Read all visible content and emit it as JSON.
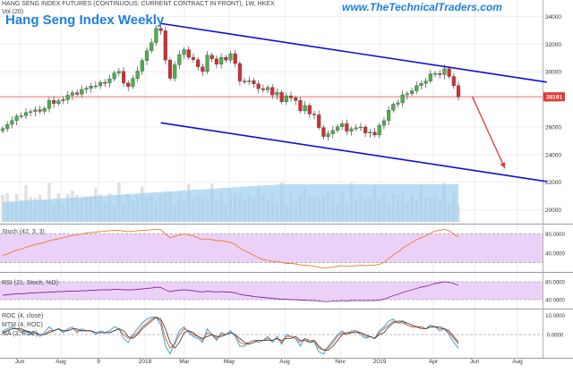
{
  "header": {
    "instrument": "HANG SENG INDEX FUTURES (CONTINUOUS: CURRENT CONTRACT IN FRONT), 1W, HKEX",
    "volume_label": "Vol (20)",
    "title": "Hang Seng Index Weekly",
    "website": "www.TheTechnicalTraders.com"
  },
  "colors": {
    "up_candle": "#4caf50",
    "down_candle": "#d32f2f",
    "channel_line": "#0d10d8",
    "projection_arrow": "#e53935",
    "price_line": "#e53935",
    "volume_fill": "#9ccff0",
    "volume_bar": "#c8c8c8",
    "stoch_band": "#e7c9f7",
    "stoch_line": "#ef7a2e",
    "rsi_line": "#8e2fae",
    "roc_line": "#2a9ae0",
    "mtm_line": "#e05a1e",
    "ma_line": "#333333"
  },
  "chart_data": [
    {
      "type": "candlestick",
      "pane": "price",
      "x_tick_labels": [
        "Jun",
        "Aug",
        "9",
        "2018",
        "Mar",
        "May",
        "Aug",
        "Nov",
        "2019",
        "Apr",
        "Jun",
        "Aug"
      ],
      "y_tick_labels": [
        "34000",
        "32000",
        "30000",
        "28000",
        "26000",
        "24000",
        "22000",
        "20000"
      ],
      "ylim": [
        19000,
        35200
      ],
      "last_price_label": "28191",
      "last_price": 28191,
      "weekly_close": [
        25880,
        26190,
        26460,
        26780,
        26820,
        27050,
        27110,
        27250,
        27140,
        27340,
        27920,
        27700,
        27900,
        27980,
        28300,
        28480,
        28370,
        28720,
        28810,
        28960,
        28980,
        29230,
        29200,
        29490,
        29910,
        30040,
        29190,
        28940,
        29520,
        30050,
        30810,
        31520,
        32110,
        33150,
        32970,
        30850,
        29530,
        30510,
        31240,
        31600,
        31050,
        30880,
        30360,
        30020,
        31200,
        30940,
        30550,
        31050,
        30850,
        31310,
        30600,
        29330,
        29280,
        29360,
        29120,
        28780,
        28690,
        28870,
        28320,
        28510,
        27830,
        28260,
        28110,
        27920,
        27170,
        27560,
        26940,
        26880,
        25960,
        25310,
        25510,
        25760,
        26020,
        26240,
        25700,
        25870,
        25940,
        26000,
        25560,
        25630,
        25420,
        26120,
        26460,
        27220,
        27650,
        27750,
        28330,
        28420,
        28620,
        29000,
        29160,
        29330,
        29850,
        29870,
        29790,
        30220,
        29660,
        28990,
        28190
      ],
      "channel": {
        "upper_from": [
          "2018-01-26",
          33500
        ],
        "upper_to": [
          "2019-08-30",
          29250
        ],
        "lower_from": [
          "2018-01-26",
          26300
        ],
        "lower_to": [
          "2019-08-30",
          22050
        ]
      },
      "projection": {
        "from": [
          "2019-05-10",
          28190
        ],
        "to": [
          "2019-06-28",
          23000
        ]
      }
    },
    {
      "type": "line",
      "pane": "stochastic",
      "name": "Stoch (42, 3, 3)",
      "y_tick_labels": [
        "80.0000",
        "40.0000"
      ],
      "ylim": [
        0,
        100
      ],
      "bands": [
        20,
        80
      ],
      "values": [
        35,
        38,
        42,
        46,
        48,
        52,
        55,
        58,
        60,
        62,
        66,
        68,
        70,
        72,
        75,
        77,
        78,
        80,
        82,
        83,
        84,
        85,
        86,
        87,
        88,
        88,
        86,
        85,
        86,
        87,
        88,
        88,
        89,
        90,
        89,
        80,
        72,
        75,
        78,
        80,
        78,
        76,
        72,
        68,
        70,
        68,
        66,
        66,
        64,
        62,
        58,
        50,
        45,
        40,
        35,
        30,
        26,
        24,
        22,
        22,
        20,
        18,
        18,
        17,
        15,
        14,
        13,
        12,
        10,
        8,
        9,
        10,
        12,
        13,
        12,
        12,
        13,
        14,
        13,
        14,
        14,
        16,
        20,
        28,
        36,
        42,
        50,
        56,
        62,
        68,
        72,
        76,
        82,
        86,
        88,
        90,
        87,
        80,
        74
      ]
    },
    {
      "type": "line",
      "pane": "rsi",
      "name": "RSI (21, Stoch, %D)",
      "y_tick_labels": [
        "80.0000",
        "40.0000"
      ],
      "ylim": [
        20,
        100
      ],
      "bands": [
        40,
        80
      ],
      "values": [
        50,
        51,
        52,
        53,
        53,
        54,
        55,
        55,
        56,
        56,
        57,
        57,
        58,
        58,
        59,
        59,
        59,
        60,
        60,
        61,
        61,
        62,
        62,
        62,
        63,
        63,
        62,
        62,
        62,
        63,
        64,
        65,
        66,
        68,
        67,
        62,
        58,
        60,
        61,
        62,
        61,
        60,
        58,
        57,
        59,
        58,
        57,
        58,
        57,
        57,
        55,
        52,
        50,
        49,
        47,
        46,
        45,
        44,
        43,
        42,
        41,
        41,
        40,
        40,
        39,
        39,
        38,
        38,
        37,
        36,
        36,
        37,
        37,
        38,
        37,
        38,
        38,
        38,
        38,
        38,
        38,
        39,
        41,
        45,
        49,
        52,
        56,
        59,
        62,
        65,
        68,
        70,
        73,
        76,
        78,
        80,
        79,
        76,
        72
      ]
    },
    {
      "type": "line",
      "pane": "roc",
      "series": [
        {
          "name": "ROC (4, close)",
          "values": [
            2,
            3,
            4,
            3,
            1,
            2,
            0,
            1,
            -1,
            1,
            4,
            2,
            3,
            1,
            3,
            4,
            1,
            3,
            2,
            2,
            0,
            2,
            1,
            2,
            4,
            3,
            -2,
            -4,
            0,
            3,
            6,
            8,
            9,
            9,
            5,
            -6,
            -10,
            -4,
            2,
            4,
            1,
            -1,
            -2,
            -4,
            3,
            0,
            -3,
            1,
            0,
            2,
            -1,
            -6,
            -6,
            -4,
            -3,
            -4,
            -3,
            -1,
            -4,
            -1,
            -5,
            0,
            -1,
            -2,
            -6,
            -2,
            -4,
            -4,
            -9,
            -10,
            -6,
            -3,
            0,
            2,
            0,
            2,
            2,
            0,
            -2,
            -1,
            -2,
            2,
            4,
            7,
            8,
            6,
            7,
            5,
            4,
            4,
            3,
            3,
            5,
            4,
            2,
            3,
            0,
            -4,
            -7
          ]
        },
        {
          "name": "MTM (4, ROC)",
          "values": [
            1,
            2,
            3,
            3,
            2,
            2,
            1,
            1,
            0,
            0,
            2,
            2,
            3,
            2,
            2,
            3,
            2,
            2,
            2,
            2,
            1,
            1,
            1,
            1,
            2,
            3,
            0,
            -2,
            -1,
            1,
            4,
            6,
            8,
            9,
            7,
            -2,
            -7,
            -5,
            0,
            3,
            2,
            0,
            -1,
            -3,
            1,
            0,
            -2,
            0,
            0,
            1,
            0,
            -4,
            -5,
            -4,
            -3,
            -3,
            -3,
            -2,
            -3,
            -2,
            -4,
            -1,
            -1,
            -2,
            -4,
            -2,
            -3,
            -3,
            -7,
            -8,
            -7,
            -4,
            -1,
            1,
            0,
            1,
            2,
            1,
            -1,
            -1,
            -2,
            1,
            3,
            5,
            7,
            6,
            6,
            5,
            4,
            4,
            3,
            3,
            4,
            4,
            3,
            3,
            1,
            -2,
            -5
          ]
        },
        {
          "name": "MA (3, ROC)",
          "values": [
            1,
            2,
            3,
            3,
            3,
            2,
            1,
            1,
            0,
            0,
            1,
            2,
            3,
            2,
            2,
            3,
            3,
            2,
            2,
            2,
            1,
            1,
            1,
            1,
            2,
            3,
            2,
            -1,
            -2,
            0,
            3,
            5,
            7,
            9,
            8,
            3,
            -4,
            -7,
            -4,
            1,
            2,
            1,
            -1,
            -2,
            -1,
            0,
            -1,
            -1,
            0,
            1,
            0,
            -2,
            -4,
            -5,
            -4,
            -3,
            -3,
            -3,
            -3,
            -2,
            -3,
            -2,
            -2,
            -1,
            -3,
            -3,
            -4,
            -3,
            -6,
            -8,
            -8,
            -6,
            -3,
            0,
            1,
            1,
            1,
            1,
            0,
            -1,
            -2,
            0,
            1,
            4,
            6,
            7,
            7,
            6,
            5,
            4,
            4,
            3,
            4,
            4,
            4,
            3,
            2,
            -1,
            -4
          ]
        }
      ],
      "y_tick_labels": [
        "10.0000",
        "0.0000"
      ],
      "ylim": [
        -12,
        13
      ]
    }
  ]
}
